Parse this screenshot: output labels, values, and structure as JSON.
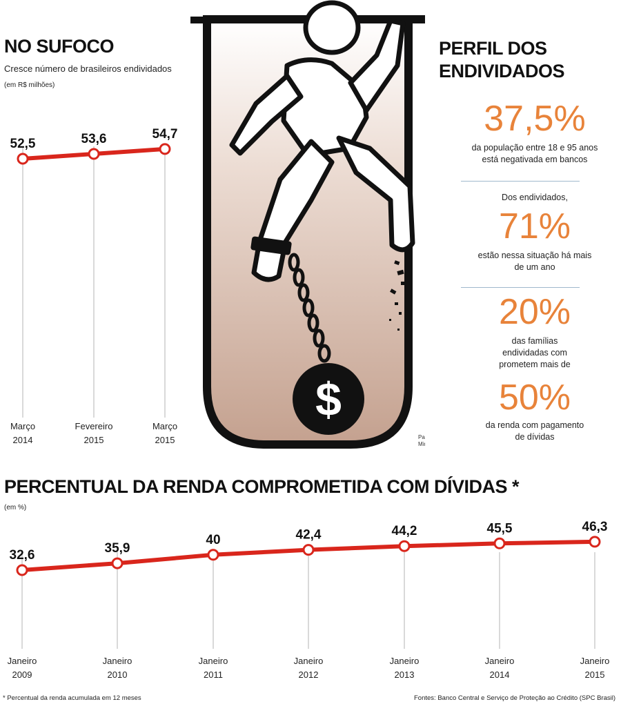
{
  "colors": {
    "line": "#d9261c",
    "accent": "#e8833a",
    "grid": "#d9d9d9",
    "pit_top": "#ffffff",
    "pit_bottom": "#c4a18f"
  },
  "left_chart": {
    "title": "NO SUFOCO",
    "subtitle": "Cresce número de brasileiros endividados",
    "unit": "(em R$ milhões)",
    "categories": [
      [
        "Março",
        "2014"
      ],
      [
        "Fevereiro",
        "2015"
      ],
      [
        "Março",
        "2015"
      ]
    ]
  },
  "profile": {
    "title_line1": "PERFIL DOS",
    "title_line2": "ENDIVIDADOS",
    "stat1_value": "37,5%",
    "stat1_line1": "da população entre 18 e 95 anos",
    "stat1_line2": "está negativada em bancos",
    "stat2_pre": "Dos endividados,",
    "stat2_value": "71%",
    "stat2_line1": "estão nessa situação há mais",
    "stat2_line2": "de um ano",
    "stat3_value": "20%",
    "stat3_line1": "das famílias",
    "stat3_line2": "endividadas com",
    "stat3_line3": "prometem mais de",
    "stat4_value": "50%",
    "stat4_line1": "da renda com pagamento",
    "stat4_line2": "de dívidas"
  },
  "illustration": {
    "credit_line1": "Paulinho",
    "credit_line2": "Miranda",
    "ball_symbol": "$"
  },
  "bottom_chart": {
    "title": "PERCENTUAL DA RENDA COMPROMETIDA COM DÍVIDAS *",
    "unit": "(em %)",
    "categories": [
      [
        "Janeiro",
        "2009"
      ],
      [
        "Janeiro",
        "2010"
      ],
      [
        "Janeiro",
        "2011"
      ],
      [
        "Janeiro",
        "2012"
      ],
      [
        "Janeiro",
        "2013"
      ],
      [
        "Janeiro",
        "2014"
      ],
      [
        "Janeiro",
        "2015"
      ]
    ]
  },
  "footer": {
    "note": "* Percentual da renda acumulada em 12 meses",
    "sources": "Fontes: Banco Central e Serviço de Proteção ao Crédito (SPC Brasil)"
  },
  "chart_data": [
    {
      "type": "line",
      "title": "NO SUFOCO",
      "subtitle": "Cresce número de brasileiros endividados",
      "ylabel": "(em R$ milhões)",
      "categories": [
        "Março 2014",
        "Fevereiro 2015",
        "Março 2015"
      ],
      "values": [
        52.5,
        53.6,
        54.7
      ],
      "labels": [
        "52,5",
        "53,6",
        "54,7"
      ],
      "grid": "vertical lines at categories",
      "legend": "none"
    },
    {
      "type": "line",
      "title": "PERCENTUAL DA RENDA COMPROMETIDA COM DÍVIDAS *",
      "ylabel": "(em %)",
      "categories": [
        "Janeiro 2009",
        "Janeiro 2010",
        "Janeiro 2011",
        "Janeiro 2012",
        "Janeiro 2013",
        "Janeiro 2014",
        "Janeiro 2015"
      ],
      "values": [
        32.6,
        35.9,
        40,
        42.4,
        44.2,
        45.5,
        46.3
      ],
      "labels": [
        "32,6",
        "35,9",
        "40",
        "42,4",
        "44,2",
        "45,5",
        "46,3"
      ],
      "grid": "vertical lines at categories",
      "legend": "none"
    }
  ]
}
